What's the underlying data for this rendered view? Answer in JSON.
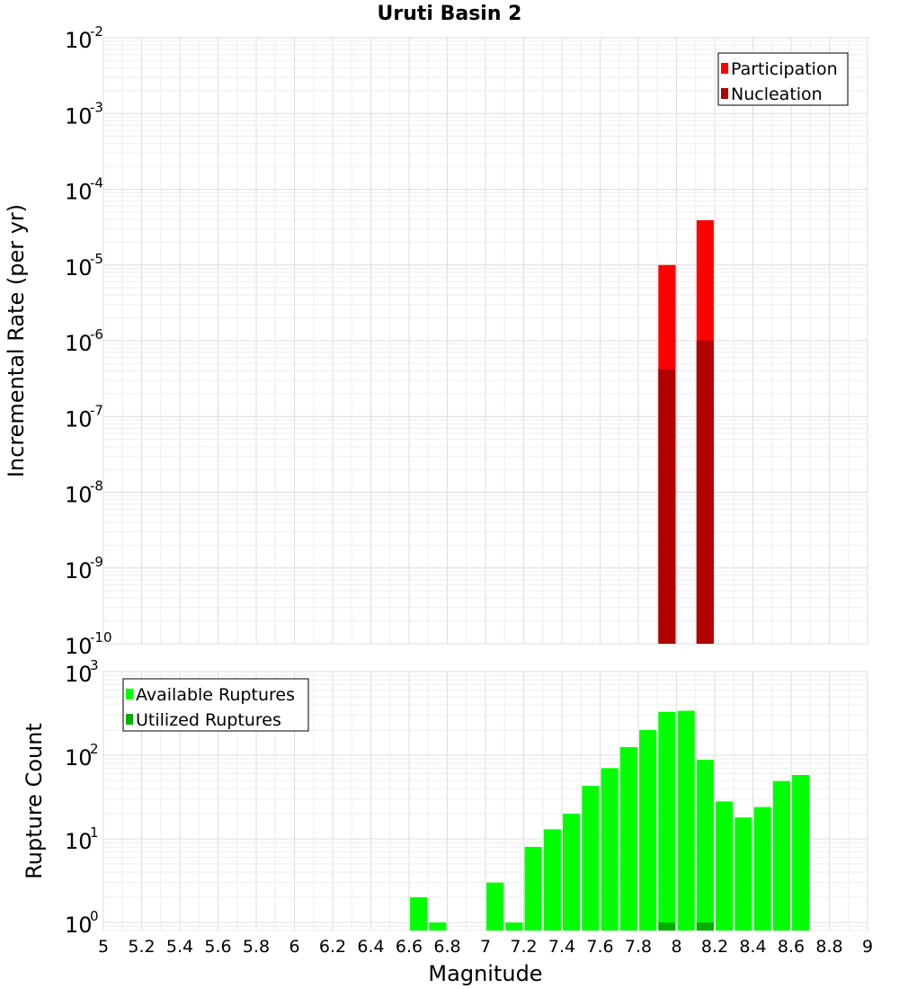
{
  "chart_data": [
    {
      "panel": "top",
      "type": "bar",
      "title": "Uruti Basin 2",
      "xlabel": "Magnitude",
      "ylabel": "Incremental Rate (per yr)",
      "yscale": "log",
      "ylim": [
        1e-10,
        0.01
      ],
      "xlim": [
        5,
        9
      ],
      "y_ticks": [
        {
          "base": "10",
          "exp": "-10"
        },
        {
          "base": "10",
          "exp": "-9"
        },
        {
          "base": "10",
          "exp": "-8"
        },
        {
          "base": "10",
          "exp": "-7"
        },
        {
          "base": "10",
          "exp": "-6"
        },
        {
          "base": "10",
          "exp": "-5"
        },
        {
          "base": "10",
          "exp": "-4"
        },
        {
          "base": "10",
          "exp": "-3"
        },
        {
          "base": "10",
          "exp": "-2"
        }
      ],
      "bar_width": 0.09,
      "series": [
        {
          "name": "Participation",
          "color": "#ff0000",
          "x": [
            7.95,
            8.15
          ],
          "values": [
            1e-05,
            3.9e-05
          ]
        },
        {
          "name": "Nucleation",
          "color": "#b00000",
          "x": [
            7.95,
            8.15
          ],
          "values": [
            4.2e-07,
            1e-06
          ]
        }
      ],
      "legend_position": "top-right",
      "grid": true
    },
    {
      "panel": "bottom",
      "type": "bar",
      "xlabel": "Magnitude",
      "ylabel": "Rupture Count",
      "yscale": "log",
      "ylim": [
        0.8,
        1000
      ],
      "xlim": [
        5,
        9
      ],
      "y_ticks": [
        {
          "base": "10",
          "exp": "0"
        },
        {
          "base": "10",
          "exp": "1"
        },
        {
          "base": "10",
          "exp": "2"
        },
        {
          "base": "10",
          "exp": "3"
        }
      ],
      "x_ticks": [
        "5",
        "5.2",
        "5.4",
        "5.6",
        "5.8",
        "6",
        "6.2",
        "6.4",
        "6.6",
        "6.8",
        "7",
        "7.2",
        "7.4",
        "7.6",
        "7.8",
        "8",
        "8.2",
        "8.4",
        "8.6",
        "8.8",
        "9"
      ],
      "bar_width": 0.09,
      "series": [
        {
          "name": "Available Ruptures",
          "color": "#00ff00",
          "x": [
            6.65,
            6.75,
            7.05,
            7.15,
            7.25,
            7.35,
            7.45,
            7.55,
            7.65,
            7.75,
            7.85,
            7.95,
            8.05,
            8.15,
            8.25,
            8.35,
            8.45,
            8.55,
            8.65
          ],
          "values": [
            2,
            1,
            3,
            1,
            8,
            13,
            20,
            43,
            70,
            125,
            200,
            330,
            340,
            88,
            28,
            18,
            24,
            49,
            58
          ]
        },
        {
          "name": "Utilized Ruptures",
          "color": "#00b000",
          "x": [
            7.95,
            8.15
          ],
          "values": [
            1,
            1
          ]
        }
      ],
      "legend_position": "top-left",
      "grid": true
    }
  ]
}
